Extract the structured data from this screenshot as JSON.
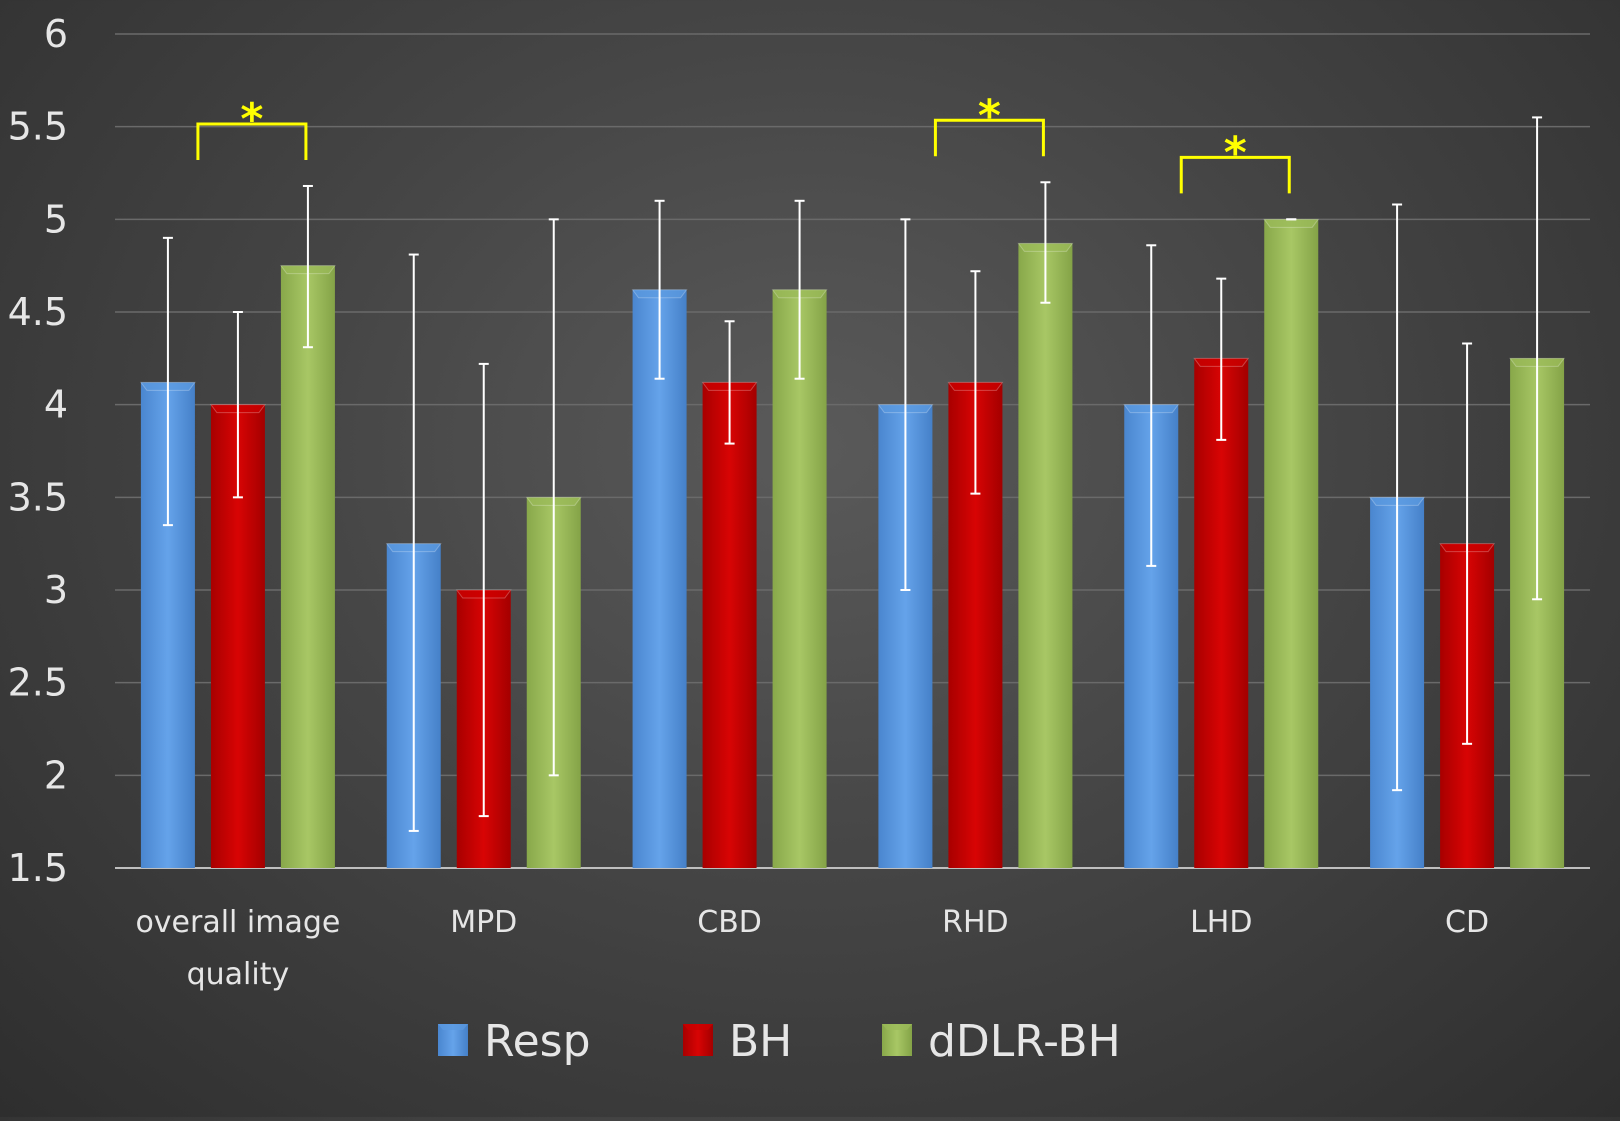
{
  "chart_data": {
    "type": "bar",
    "categories": [
      [
        "overall image",
        "quality"
      ],
      [
        "MPD"
      ],
      [
        "CBD"
      ],
      [
        "RHD"
      ],
      [
        "LHD"
      ],
      [
        "CD"
      ]
    ],
    "series": [
      {
        "name": "Resp",
        "color": "#5b9ae0",
        "values": [
          4.12,
          3.25,
          4.62,
          4.0,
          4.0,
          3.5
        ],
        "err_low": [
          3.35,
          1.7,
          4.14,
          3.0,
          3.13,
          1.92
        ],
        "err_high": [
          4.9,
          4.81,
          5.1,
          5.0,
          4.86,
          5.08
        ]
      },
      {
        "name": "BH",
        "color": "#cc0000",
        "values": [
          4.0,
          3.0,
          4.12,
          4.12,
          4.25,
          3.25
        ],
        "err_low": [
          3.5,
          1.78,
          3.79,
          3.52,
          3.81,
          2.17
        ],
        "err_high": [
          4.5,
          4.22,
          4.45,
          4.72,
          4.68,
          4.33
        ]
      },
      {
        "name": "dDLR-BH",
        "color": "#9bbb59",
        "values": [
          4.75,
          3.5,
          4.62,
          4.87,
          5.0,
          4.25
        ],
        "err_low": [
          4.31,
          2.0,
          4.14,
          4.55,
          5.0,
          2.95
        ],
        "err_high": [
          5.18,
          5.0,
          5.1,
          5.2,
          5.0,
          5.55
        ]
      }
    ],
    "ylim": [
      1.5,
      6
    ],
    "yticks": [
      "1.5",
      "2",
      "2.5",
      "3",
      "3.5",
      "4",
      "4.5",
      "5",
      "5.5",
      "6"
    ],
    "grid": true,
    "legend_position": "bottom",
    "significance": [
      {
        "category_index": 0,
        "from_series": 0,
        "to_series": 2,
        "label": "*"
      },
      {
        "category_index": 3,
        "from_series": 0,
        "to_series": 2,
        "label": "*"
      },
      {
        "category_index": 4,
        "from_series": 0,
        "to_series": 2,
        "label": "*"
      }
    ],
    "significance_color": "#ffff00",
    "errorbar_color": "#ffffff",
    "grid_color": "#6a6a6a",
    "axis_color": "#bfbfbf"
  }
}
